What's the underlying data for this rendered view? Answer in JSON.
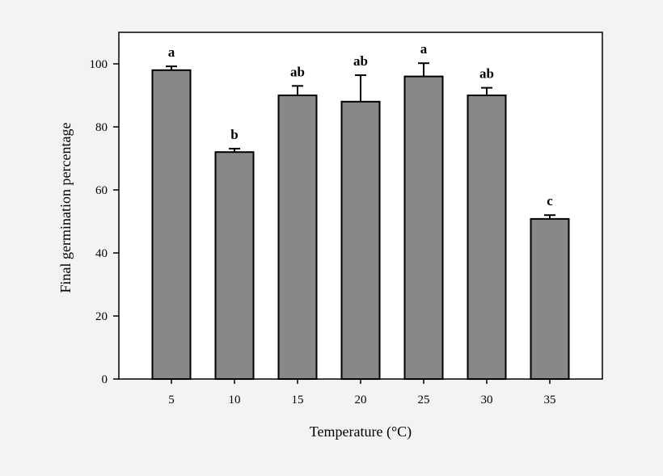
{
  "chart_data": {
    "type": "bar",
    "title": "",
    "xlabel": "Temperature (°C)",
    "xlabel_parts": {
      "pre": "Temperature (",
      "sup": "o",
      "post": "C)"
    },
    "ylabel": "Final germination percentage",
    "categories": [
      "5",
      "10",
      "15",
      "20",
      "25",
      "30",
      "35"
    ],
    "values": [
      98,
      72,
      90,
      88,
      96,
      90,
      50.8
    ],
    "error_upper": [
      99.2,
      73.1,
      93,
      96.4,
      100.2,
      92.4,
      52
    ],
    "letters": [
      "a",
      "b",
      "ab",
      "ab",
      "a",
      "ab",
      "c"
    ],
    "ylim": [
      0,
      110
    ],
    "yticks": [
      "0",
      "20",
      "40",
      "60",
      "80",
      "100"
    ],
    "grid": false,
    "bar_color": "#888888",
    "background_color": "#f3f3f3"
  }
}
